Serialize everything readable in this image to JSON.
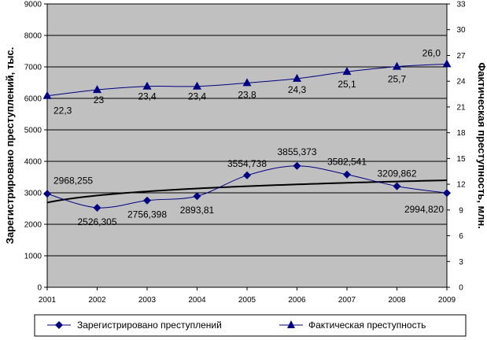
{
  "chart_data": {
    "type": "line",
    "categories": [
      "2001",
      "2002",
      "2003",
      "2004",
      "2005",
      "2006",
      "2007",
      "2008",
      "2009"
    ],
    "ylabel": "Зарегистрировано преступлений, тыс.",
    "y2label": "Фактическая преступность, млн.",
    "ylim": [
      0,
      9000
    ],
    "y2lim": [
      0,
      33
    ],
    "yticks": [
      "0",
      "1000",
      "2000",
      "3000",
      "4000",
      "5000",
      "6000",
      "7000",
      "8000",
      "9000"
    ],
    "y2ticks": [
      "0",
      "3",
      "6",
      "9",
      "12",
      "15",
      "18",
      "21",
      "24",
      "27",
      "30",
      "33"
    ],
    "grid": true,
    "legend_position": "bottom",
    "plot_background": "#c0c0c0",
    "series": [
      {
        "name": "Зарегистрировано преступлений",
        "axis": "left",
        "marker": "diamond",
        "color": "#000080",
        "values": [
          2968.255,
          2526.305,
          2756.398,
          2893.81,
          3554.738,
          3855.373,
          3582.541,
          3209.862,
          2994.82
        ],
        "labels": [
          "2968,255",
          "2526,305",
          "2756,398",
          "2893,81",
          "3554,738",
          "3855,373",
          "3582,541",
          "3209,862",
          "2994,820"
        ]
      },
      {
        "name": "Фактическая преступность",
        "axis": "right",
        "marker": "triangle",
        "color": "#000080",
        "values": [
          22.3,
          23,
          23.4,
          23.4,
          23.8,
          24.3,
          25.1,
          25.7,
          26.0
        ],
        "labels": [
          "22,3",
          "23",
          "23,4",
          "23,4",
          "23,8",
          "24,3",
          "25,1",
          "25,7",
          "26,0"
        ]
      }
    ],
    "trendline": {
      "of_series": "Зарегистрировано преступлений",
      "kind": "logarithmic",
      "color": "#000000"
    }
  }
}
